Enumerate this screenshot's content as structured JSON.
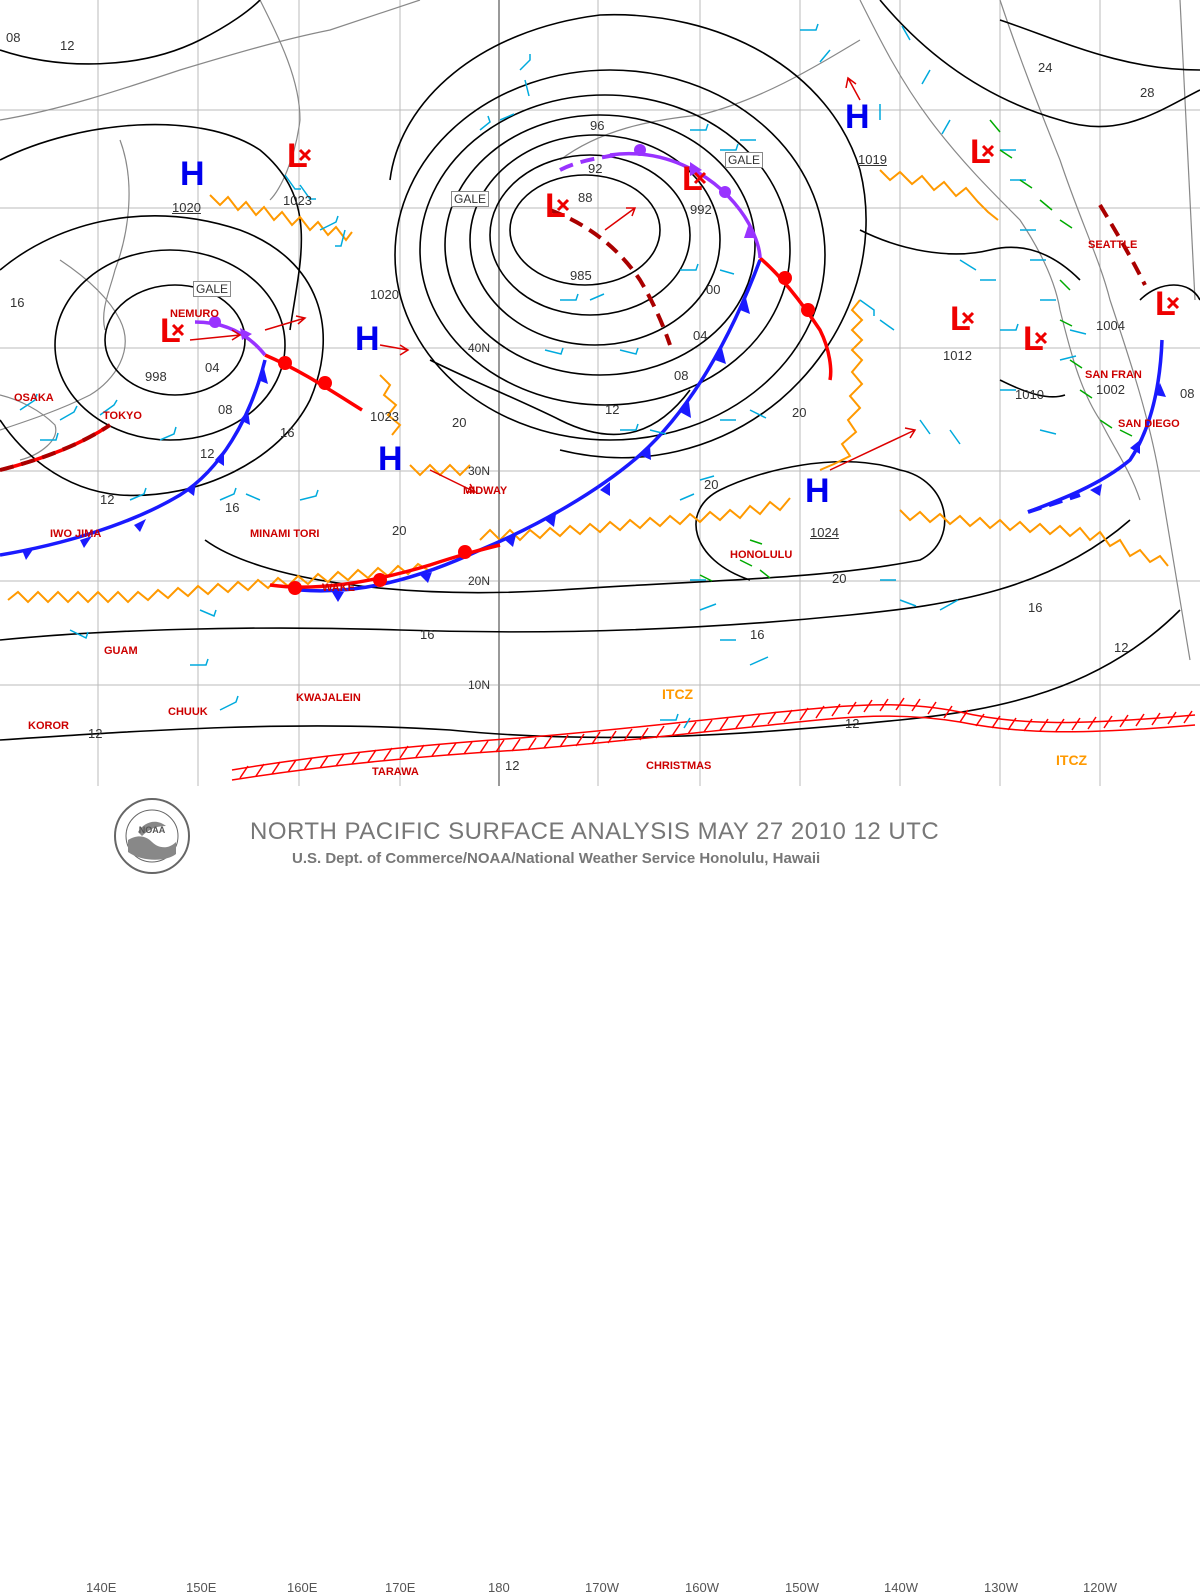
{
  "title": "NORTH PACIFIC SURFACE ANALYSIS MAY 27 2010 12 UTC",
  "subtitle": "U.S. Dept. of Commerce/NOAA/National Weather Service Honolulu, Hawaii",
  "logo_text": "NOAA",
  "longitude_labels": [
    "140E",
    "150E",
    "160E",
    "170E",
    "180",
    "170W",
    "160W",
    "150W",
    "140W",
    "130W",
    "120W"
  ],
  "latitude_labels": [
    "40N",
    "30N",
    "20N",
    "10N"
  ],
  "pressure_systems": [
    {
      "kind": "H",
      "pressure": "1020"
    },
    {
      "kind": "L",
      "pressure": "1023"
    },
    {
      "kind": "L",
      "pressure": "998"
    },
    {
      "kind": "H",
      "pressure": "1020"
    },
    {
      "kind": "H",
      "pressure": "1023"
    },
    {
      "kind": "L",
      "pressure": "985"
    },
    {
      "kind": "L",
      "pressure": "992"
    },
    {
      "kind": "H",
      "pressure": "1019"
    },
    {
      "kind": "L",
      "pressure": "1012"
    },
    {
      "kind": "L",
      "pressure": "1010"
    },
    {
      "kind": "L",
      "pressure": "1004"
    },
    {
      "kind": "L",
      "pressure": "1002"
    },
    {
      "kind": "H",
      "pressure": "1024"
    }
  ],
  "gale_labels": [
    "GALE",
    "GALE",
    "GALE"
  ],
  "isobar_labels": [
    "08",
    "12",
    "16",
    "04",
    "08",
    "12",
    "16",
    "12",
    "20",
    "20",
    "16",
    "12",
    "96",
    "92",
    "88",
    "00",
    "04",
    "08",
    "12",
    "20",
    "20",
    "16",
    "12",
    "16",
    "16",
    "20",
    "12",
    "24",
    "28",
    "08",
    "12"
  ],
  "stations": [
    "NEMURO",
    "OSAKA",
    "TOKYO",
    "IWO JIMA",
    "MINAMI TORI",
    "WAKE",
    "MIDWAY",
    "GUAM",
    "KOROR",
    "CHUUK",
    "KWAJALEIN",
    "TARAWA",
    "CHRISTMAS",
    "HONOLULU",
    "SEATTLE",
    "SAN FRAN",
    "SAN DIEGO"
  ],
  "itcz_labels": [
    "ITCZ",
    "ITCZ"
  ],
  "colors": {
    "isobar": "#000000",
    "cold_front": "#1a1aff",
    "warm_front": "#ff0000",
    "occluded_front": "#9933ff",
    "trough": "#ff9900",
    "itcz": "#ff0000",
    "wind_barb": "#00aadd",
    "station": "#cc0000",
    "high": "#0000ee",
    "low": "#ee0000",
    "coast": "#888888",
    "footer_text": "#777777"
  }
}
